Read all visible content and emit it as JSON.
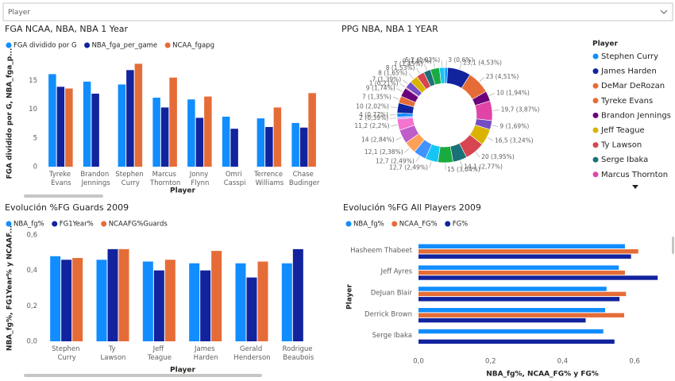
{
  "slicer": {
    "label": "Player"
  },
  "chart_data": [
    {
      "type": "bar",
      "title": "FGA NCAA, NBA, NBA 1 Year",
      "categories": [
        "Tyreke Evans",
        "Brandon Jennings",
        "Stephen Curry",
        "Marcus Thornton",
        "Jonny Flynn",
        "Omri Casspi",
        "Terrence Williams",
        "Chase Budinger"
      ],
      "series": [
        {
          "name": "FGA dividido por G",
          "color": "#118DFF",
          "values": [
            16.1,
            14.8,
            14.3,
            12.0,
            11.7,
            8.7,
            8.4,
            7.6
          ]
        },
        {
          "name": "NBA_fga_per_game",
          "color": "#12239E",
          "values": [
            13.9,
            12.7,
            16.8,
            10.3,
            8.5,
            6.6,
            6.9,
            6.8
          ]
        },
        {
          "name": "NCAA_fgapg",
          "color": "#E66C37",
          "values": [
            13.6,
            null,
            17.9,
            15.5,
            12.2,
            null,
            10.3,
            12.8
          ]
        }
      ],
      "ylim": [
        0,
        18.5
      ],
      "yticks": [
        0,
        5,
        10,
        15
      ],
      "xlabel": "Player",
      "ylabel": "FGA dividido por G, NBA_fga_p..."
    },
    {
      "type": "donut",
      "title": "PPG NBA, NBA 1 YEAR",
      "values": [
        3,
        23.1,
        23,
        10,
        19.7,
        9,
        16.5,
        20,
        14.1,
        15,
        12.7,
        12.7,
        12.1,
        14,
        11.2,
        2,
        4,
        10,
        7,
        9,
        1,
        7,
        8,
        8,
        7,
        9,
        5.2
      ],
      "value_labels": [
        "3 (0,6%)",
        "23,1 (4,53%)",
        "23 (4,51%)",
        "10 (1,94%)",
        "19,7 (3,87%)",
        "9 (1,69%)",
        "16,5 (3,24%)",
        "20 (3,95%)",
        "14,1 (2,77%)",
        "15 (3,04%)",
        "12,7 (2,49%)",
        "12,7 (2,49%)",
        "12,1 (2,38%)",
        "14 (2,84%)",
        "11,2 (2,2%)",
        "2 (0,39%)",
        "4 (0,77%)",
        "10 (2,02%)",
        "7 (1,35%)",
        "9 (1,74%)",
        "1 (0,21%)",
        "7 (1,39%)",
        "8 (1,65%)",
        "8 (1,53%)",
        "7 (1,45%)",
        "9 (1,82%)",
        "5,2 (1,02%)"
      ],
      "colors": [
        "#118DFF",
        "#12239E",
        "#E66C37",
        "#6B007B",
        "#E044A7",
        "#744EC2",
        "#D9B300",
        "#D64550",
        "#197278",
        "#1AAB40",
        "#15C6F4",
        "#4092FF",
        "#FFA058",
        "#BE5DC9",
        "#F472D0",
        "#B5A1FF"
      ],
      "legend": {
        "title": "Player",
        "entries": [
          {
            "name": "Stephen Curry",
            "color": "#118DFF"
          },
          {
            "name": "James Harden",
            "color": "#12239E"
          },
          {
            "name": "DeMar DeRozan",
            "color": "#E66C37"
          },
          {
            "name": "Tyreke Evans",
            "color": "#E66C37"
          },
          {
            "name": "Brandon Jennings",
            "color": "#6B007B"
          },
          {
            "name": "Jeff Teague",
            "color": "#D9B300"
          },
          {
            "name": "Ty Lawson",
            "color": "#D64550"
          },
          {
            "name": "Serge Ibaka",
            "color": "#197278"
          },
          {
            "name": "Marcus Thornton",
            "color": "#E044A7"
          }
        ]
      }
    },
    {
      "type": "bar",
      "title": "Evolución %FG Guards 2009",
      "categories": [
        "Stephen Curry",
        "Ty Lawson",
        "Jeff Teague",
        "James Harden",
        "Gerald Henderson",
        "Rodrigue Beaubois"
      ],
      "series": [
        {
          "name": "NBA_fg%",
          "color": "#118DFF",
          "values": [
            0.48,
            0.46,
            0.45,
            0.44,
            0.44,
            0.44
          ]
        },
        {
          "name": "FG1Year%",
          "color": "#12239E",
          "values": [
            0.46,
            0.52,
            0.4,
            0.4,
            0.36,
            0.52
          ]
        },
        {
          "name": "NCAAFG%Guards",
          "color": "#E66C37",
          "values": [
            0.47,
            0.52,
            0.46,
            0.51,
            0.45,
            null
          ]
        }
      ],
      "ylim": [
        0,
        0.6
      ],
      "yticks": [
        {
          "value": 0,
          "label": "0,0"
        },
        {
          "value": 0.2,
          "label": "0,2"
        },
        {
          "value": 0.4,
          "label": "0,4"
        },
        {
          "value": 0.6,
          "label": "0,6"
        }
      ],
      "xlabel": "Player",
      "ylabel": "NBA_fg%, FG1Year% y NCAAF..."
    },
    {
      "type": "bar",
      "orientation": "horizontal",
      "title": "Evolución %FG All Players 2009",
      "categories": [
        "Hasheem Thabeet",
        "Jeff Ayres",
        "DeJuan Blair",
        "Derrick Brown",
        "Serge Ibaka"
      ],
      "series": [
        {
          "name": "NBA_fg%",
          "color": "#118DFF",
          "values": [
            0.573,
            0.556,
            0.522,
            0.518,
            0.513
          ]
        },
        {
          "name": "NCAA_FG%",
          "color": "#E66C37",
          "values": [
            0.61,
            0.573,
            0.576,
            0.571,
            null
          ]
        },
        {
          "name": "FG%",
          "color": "#12239E",
          "values": [
            0.59,
            0.664,
            0.558,
            0.464,
            0.544
          ]
        }
      ],
      "xlim": [
        0,
        0.69
      ],
      "xticks": [
        {
          "value": 0,
          "label": "0,0"
        },
        {
          "value": 0.2,
          "label": "0,2"
        },
        {
          "value": 0.4,
          "label": "0,4"
        },
        {
          "value": 0.6,
          "label": "0,6"
        }
      ],
      "xlabel": "NBA_fg%, NCAA_FG% y FG%",
      "ylabel": "Player"
    }
  ]
}
